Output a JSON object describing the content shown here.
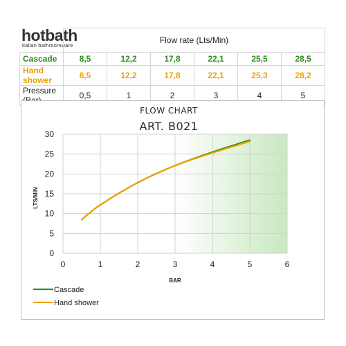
{
  "brand": {
    "name": "hotbath",
    "tagline": "italian bathroomware"
  },
  "table": {
    "header": "Flow rate (Lts/Min)",
    "rows": [
      {
        "label": "Cascade",
        "values": [
          "8,5",
          "12,2",
          "17,8",
          "22,1",
          "25,5",
          "28,5"
        ]
      },
      {
        "label": "Hand shower",
        "values": [
          "8,5",
          "12,2",
          "17,8",
          "22,1",
          "25,3",
          "28,2"
        ]
      },
      {
        "label": "Pressure (Bar)",
        "values": [
          "0,5",
          "1",
          "2",
          "3",
          "4",
          "5"
        ]
      }
    ]
  },
  "colors": {
    "cascade": "#2e8b1e",
    "hand_shower": "#f0a000",
    "gradient_start": "#ffffff",
    "gradient_end": "#c9e8c0"
  },
  "chart_data": {
    "type": "line",
    "title": "FLOW CHART",
    "subtitle": "ART. B021",
    "xlabel": "BAR",
    "ylabel": "LTS/MIN",
    "xlim": [
      0,
      6
    ],
    "ylim": [
      0,
      30
    ],
    "xticks": [
      0,
      1,
      2,
      3,
      4,
      5,
      6
    ],
    "yticks": [
      0,
      5,
      10,
      15,
      20,
      25,
      30
    ],
    "grid": true,
    "legend_position": "bottom-left",
    "series": [
      {
        "name": "Cascade",
        "color": "#2e8b1e",
        "x": [
          0.5,
          1,
          2,
          3,
          4,
          5
        ],
        "y": [
          8.5,
          12.2,
          17.8,
          22.1,
          25.5,
          28.5
        ]
      },
      {
        "name": "Hand shower",
        "color": "#f0a000",
        "x": [
          0.5,
          1,
          2,
          3,
          4,
          5
        ],
        "y": [
          8.5,
          12.2,
          17.8,
          22.1,
          25.3,
          28.2
        ]
      }
    ]
  }
}
